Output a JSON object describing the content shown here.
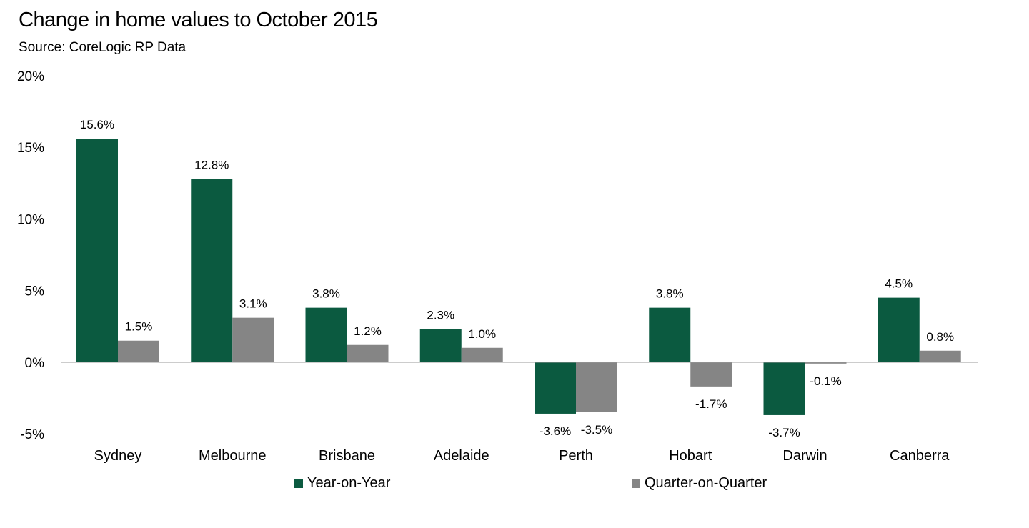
{
  "chart_data": {
    "type": "bar",
    "title": "Change in home values to October 2015",
    "subtitle": "Source: CoreLogic RP Data",
    "categories": [
      "Sydney",
      "Melbourne",
      "Brisbane",
      "Adelaide",
      "Perth",
      "Hobart",
      "Darwin",
      "Canberra"
    ],
    "series": [
      {
        "name": "Year-on-Year",
        "color": "#0b5a40",
        "values": [
          15.6,
          12.8,
          3.8,
          2.3,
          -3.6,
          3.8,
          -3.7,
          4.5
        ],
        "labels": [
          "15.6%",
          "12.8%",
          "3.8%",
          "2.3%",
          "-3.6%",
          "3.8%",
          "-3.7%",
          "4.5%"
        ]
      },
      {
        "name": "Quarter-on-Quarter",
        "color": "#858585",
        "values": [
          1.5,
          3.1,
          1.2,
          1.0,
          -3.5,
          -1.7,
          -0.1,
          0.8
        ],
        "labels": [
          "1.5%",
          "3.1%",
          "1.2%",
          "1.0%",
          "-3.5%",
          "-1.7%",
          "-0.1%",
          "0.8%"
        ]
      }
    ],
    "yticks": [
      {
        "value": 20,
        "label": "20%"
      },
      {
        "value": 15,
        "label": "15%"
      },
      {
        "value": 10,
        "label": "10%"
      },
      {
        "value": 5,
        "label": "5%"
      },
      {
        "value": 0,
        "label": "0%"
      },
      {
        "value": -5,
        "label": "-5%"
      }
    ],
    "ylim": [
      -5,
      20
    ],
    "xlabel": "",
    "ylabel": "",
    "grid": false,
    "legend_position": "bottom"
  }
}
